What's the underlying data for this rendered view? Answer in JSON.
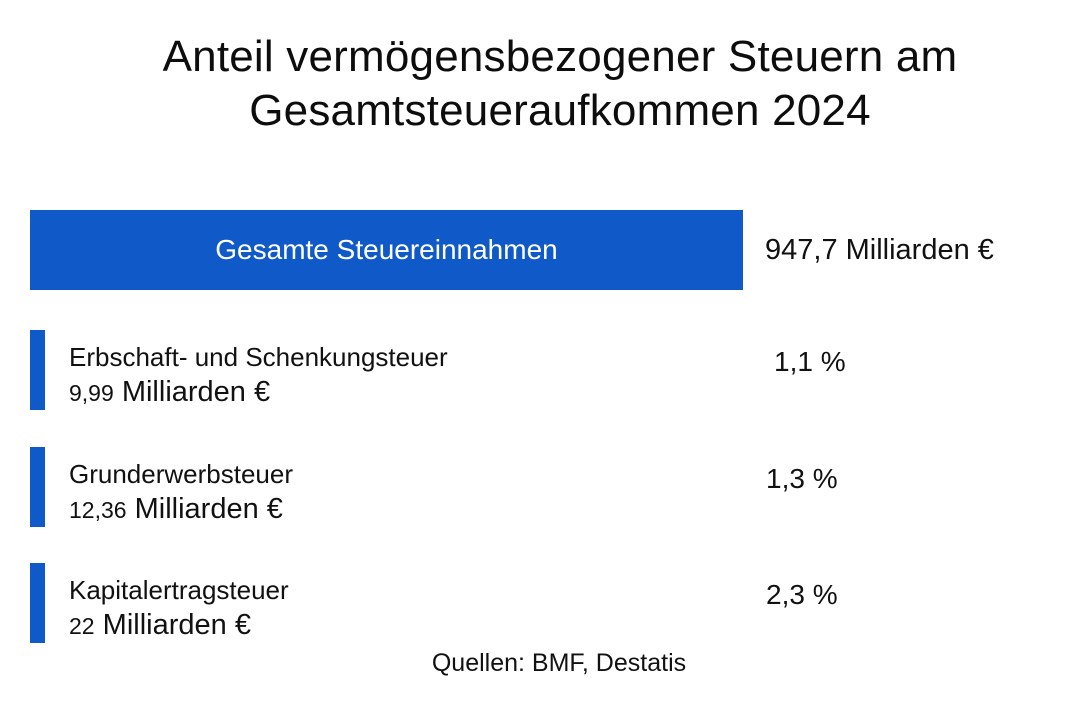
{
  "chart_data": {
    "type": "table",
    "title": "Anteil vermögensbezogener Steuern am Gesamtsteueraufkommen 2024",
    "title_lines": [
      "Anteil vermögensbezogener Steuern am",
      "Gesamtsteueraufkommen 2024"
    ],
    "total": {
      "label": "Gesamte Steuereinnahmen",
      "value_text": "947,7 Milliarden €",
      "value": 947.7,
      "unit": "Milliarden €"
    },
    "rows": [
      {
        "name": "Erbschaft- und Schenkungsteuer",
        "amount_number": "9,99",
        "amount_unit": "Milliarden €",
        "value": 9.99,
        "percent_text": "1,1 %",
        "percent": 1.1
      },
      {
        "name": "Grunderwerbsteuer",
        "amount_number": "12,36",
        "amount_unit": "Milliarden €",
        "value": 12.36,
        "percent_text": "1,3 %",
        "percent": 1.3
      },
      {
        "name": "Kapitalertragsteuer",
        "amount_number": "22",
        "amount_unit": "Milliarden €",
        "value": 22,
        "percent_text": "2,3 %",
        "percent": 2.3
      }
    ],
    "source": "Quellen: BMF, Destatis",
    "colors": {
      "accent": "#1059c8",
      "text": "#111111",
      "bar_text": "#ffffff"
    }
  }
}
